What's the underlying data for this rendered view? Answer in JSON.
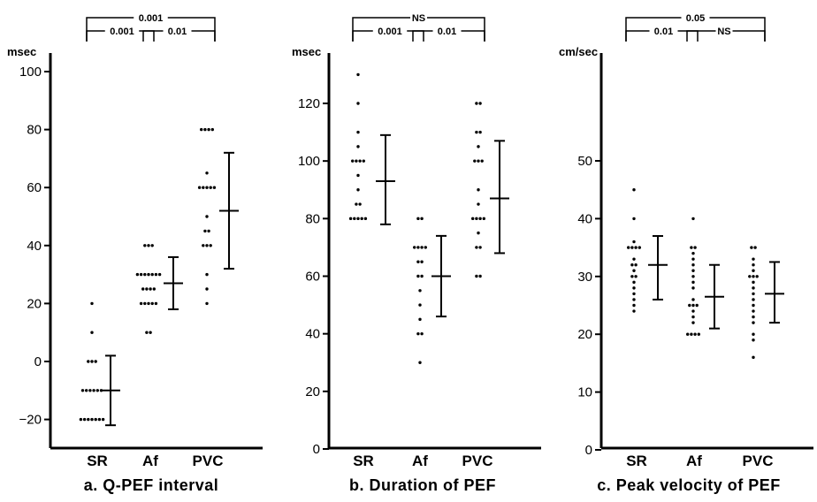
{
  "chart_data": [
    {
      "type": "scatter",
      "title": "a. Q-PEF interval",
      "unit": "msec",
      "categories": [
        "SR",
        "Af",
        "PVC"
      ],
      "ylim": [
        -30,
        100
      ],
      "yticks": [
        -20,
        0,
        20,
        40,
        60,
        80,
        100
      ],
      "ytick_labels": [
        "−20",
        "0",
        "20",
        "40",
        "60",
        "80",
        "100"
      ],
      "grid": false,
      "series": [
        {
          "values": [
            20,
            10,
            0,
            0,
            0,
            -10,
            -10,
            -10,
            -10,
            -10,
            -10,
            -20,
            -20,
            -20,
            -20,
            -20,
            -20,
            -20
          ],
          "mean": -10,
          "sd_low": -22,
          "sd_high": 2
        },
        {
          "values": [
            40,
            40,
            40,
            30,
            30,
            30,
            30,
            30,
            30,
            30,
            25,
            25,
            25,
            25,
            20,
            20,
            20,
            20,
            20,
            10,
            10
          ],
          "mean": 27,
          "sd_low": 18,
          "sd_high": 36
        },
        {
          "values": [
            80,
            80,
            80,
            80,
            65,
            60,
            60,
            60,
            60,
            60,
            50,
            45,
            45,
            40,
            40,
            40,
            30,
            25,
            20
          ],
          "mean": 52,
          "sd_low": 32,
          "sd_high": 72
        }
      ],
      "comparisons": [
        {
          "from": "SR",
          "to": "PVC",
          "p": "0.001"
        },
        {
          "from": "SR",
          "to": "Af",
          "p": "0.001"
        },
        {
          "from": "Af",
          "to": "PVC",
          "p": "0.01"
        }
      ]
    },
    {
      "type": "scatter",
      "title": "b. Duration of PEF",
      "unit": "msec",
      "categories": [
        "SR",
        "Af",
        "PVC"
      ],
      "ylim": [
        0,
        135
      ],
      "yticks": [
        0,
        20,
        40,
        60,
        80,
        100,
        120
      ],
      "ytick_labels": [
        "0",
        "20",
        "40",
        "60",
        "80",
        "100",
        "120"
      ],
      "grid": false,
      "series": [
        {
          "values": [
            130,
            120,
            110,
            105,
            100,
            100,
            100,
            100,
            95,
            90,
            85,
            85,
            80,
            80,
            80,
            80,
            80
          ],
          "mean": 93,
          "sd_low": 78,
          "sd_high": 109
        },
        {
          "values": [
            80,
            80,
            70,
            70,
            70,
            70,
            65,
            65,
            60,
            60,
            55,
            50,
            45,
            40,
            40,
            30
          ],
          "mean": 60,
          "sd_low": 46,
          "sd_high": 74
        },
        {
          "values": [
            120,
            120,
            110,
            110,
            105,
            100,
            100,
            100,
            90,
            85,
            80,
            80,
            80,
            80,
            75,
            70,
            70,
            60,
            60
          ],
          "mean": 87,
          "sd_low": 68,
          "sd_high": 107
        }
      ],
      "comparisons": [
        {
          "from": "SR",
          "to": "PVC",
          "p": "NS"
        },
        {
          "from": "SR",
          "to": "Af",
          "p": "0.001"
        },
        {
          "from": "Af",
          "to": "PVC",
          "p": "0.01"
        }
      ]
    },
    {
      "type": "scatter",
      "title": "c. Peak velocity of PEF",
      "unit": "cm/sec",
      "categories": [
        "SR",
        "Af",
        "PVC"
      ],
      "ylim": [
        0,
        70
      ],
      "yticks": [
        0,
        10,
        20,
        30,
        40,
        50
      ],
      "ytick_labels": [
        "0",
        "10",
        "20",
        "30",
        "40",
        "50"
      ],
      "grid": false,
      "series": [
        {
          "values": [
            45,
            40,
            36,
            35,
            35,
            35,
            35,
            33,
            32,
            32,
            31,
            30,
            30,
            29,
            28,
            27,
            26,
            25,
            24
          ],
          "mean": 32,
          "sd_low": 26,
          "sd_high": 37
        },
        {
          "values": [
            40,
            35,
            35,
            34,
            33,
            32,
            31,
            30,
            29,
            28,
            26,
            25,
            25,
            25,
            24,
            23,
            22,
            20,
            20,
            20,
            20
          ],
          "mean": 26.5,
          "sd_low": 21,
          "sd_high": 32
        },
        {
          "values": [
            35,
            35,
            33,
            32,
            31,
            30,
            30,
            30,
            29,
            28,
            27,
            26,
            25,
            24,
            23,
            22,
            20,
            19,
            16
          ],
          "mean": 27,
          "sd_low": 22,
          "sd_high": 32.5
        }
      ],
      "comparisons": [
        {
          "from": "SR",
          "to": "PVC",
          "p": "0.05"
        },
        {
          "from": "SR",
          "to": "Af",
          "p": "0.01"
        },
        {
          "from": "Af",
          "to": "PVC",
          "p": "NS"
        }
      ]
    }
  ]
}
